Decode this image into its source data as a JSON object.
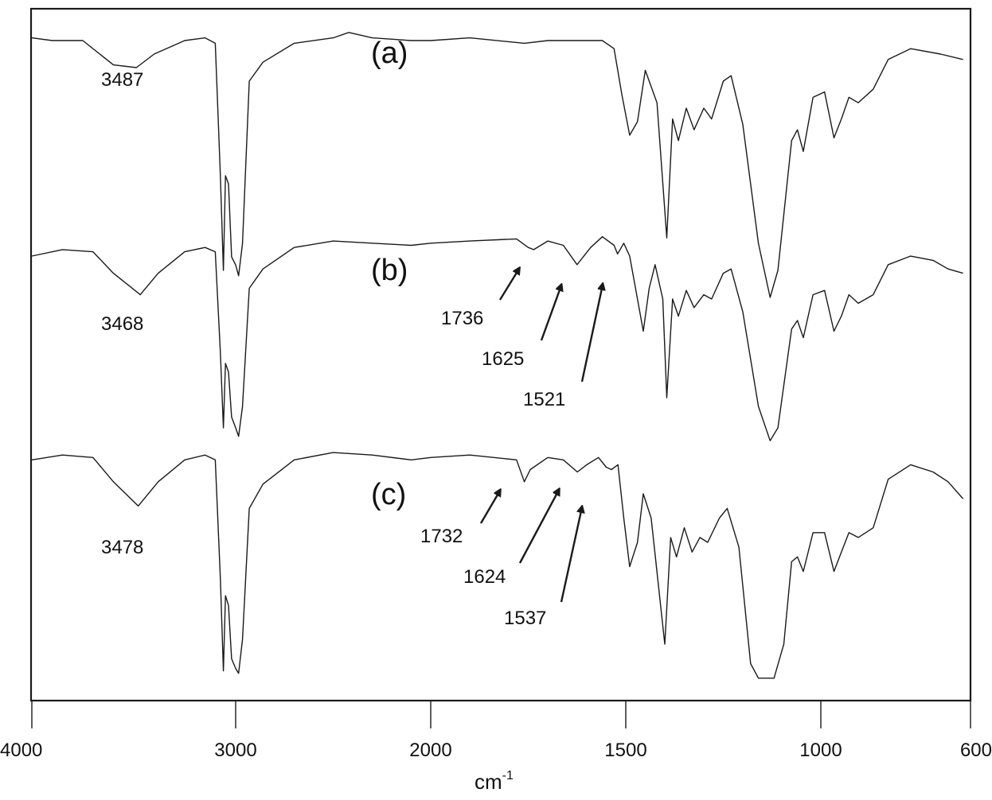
{
  "chart_data": {
    "type": "line",
    "title": "",
    "xlabel": "cm-1",
    "xlabel_base": "cm",
    "xlabel_sup": "-1",
    "ylabel": "",
    "x_axis": {
      "range": [
        4000,
        600
      ],
      "reversed": true,
      "scale": "split (4000-2000 compressed, 2000-600 expanded)",
      "ticks": [
        4000,
        3000,
        2000,
        1500,
        1000,
        600
      ],
      "tick_labels": [
        "4000",
        "3000",
        "2000",
        "1500",
        "1000",
        "600"
      ]
    },
    "y_axis": {
      "ticks": [],
      "offset_stacked": true
    },
    "grid": false,
    "legend": null,
    "series": [
      {
        "name": "(a)",
        "label": "(a)",
        "annotations": [
          {
            "text": "3487",
            "wavenumber": 3487
          }
        ],
        "points": [
          [
            4000,
            0.04
          ],
          [
            3900,
            0.05
          ],
          [
            3750,
            0.05
          ],
          [
            3600,
            0.14
          ],
          [
            3487,
            0.15
          ],
          [
            3400,
            0.1
          ],
          [
            3250,
            0.05
          ],
          [
            3150,
            0.04
          ],
          [
            3100,
            0.06
          ],
          [
            3075,
            0.55
          ],
          [
            3060,
            0.9
          ],
          [
            3050,
            0.55
          ],
          [
            3035,
            0.58
          ],
          [
            3020,
            0.85
          ],
          [
            3000,
            0.88
          ],
          [
            2985,
            0.92
          ],
          [
            2965,
            0.8
          ],
          [
            2930,
            0.2
          ],
          [
            2860,
            0.13
          ],
          [
            2700,
            0.06
          ],
          [
            2500,
            0.04
          ],
          [
            2420,
            0.02
          ],
          [
            2300,
            0.04
          ],
          [
            2100,
            0.05
          ],
          [
            2000,
            0.05
          ],
          [
            1900,
            0.04
          ],
          [
            1760,
            0.06
          ],
          [
            1700,
            0.05
          ],
          [
            1560,
            0.05
          ],
          [
            1530,
            0.08
          ],
          [
            1510,
            0.25
          ],
          [
            1490,
            0.4
          ],
          [
            1470,
            0.35
          ],
          [
            1450,
            0.16
          ],
          [
            1420,
            0.28
          ],
          [
            1395,
            0.78
          ],
          [
            1380,
            0.34
          ],
          [
            1365,
            0.42
          ],
          [
            1345,
            0.3
          ],
          [
            1325,
            0.38
          ],
          [
            1300,
            0.3
          ],
          [
            1280,
            0.34
          ],
          [
            1250,
            0.2
          ],
          [
            1230,
            0.18
          ],
          [
            1200,
            0.36
          ],
          [
            1160,
            0.8
          ],
          [
            1130,
            1.0
          ],
          [
            1110,
            0.9
          ],
          [
            1075,
            0.42
          ],
          [
            1060,
            0.38
          ],
          [
            1045,
            0.46
          ],
          [
            1020,
            0.26
          ],
          [
            990,
            0.24
          ],
          [
            965,
            0.41
          ],
          [
            945,
            0.34
          ],
          [
            925,
            0.26
          ],
          [
            900,
            0.28
          ],
          [
            860,
            0.23
          ],
          [
            820,
            0.12
          ],
          [
            760,
            0.08
          ],
          [
            680,
            0.1
          ],
          [
            620,
            0.12
          ]
        ]
      },
      {
        "name": "(b)",
        "label": "(b)",
        "annotations": [
          {
            "text": "3468",
            "wavenumber": 3468
          },
          {
            "text": "1736",
            "wavenumber": 1736,
            "arrow": true
          },
          {
            "text": "1625",
            "wavenumber": 1625,
            "arrow": true
          },
          {
            "text": "1521",
            "wavenumber": 1521,
            "arrow": true
          }
        ],
        "points": [
          [
            4000,
            0.1
          ],
          [
            3850,
            0.07
          ],
          [
            3700,
            0.08
          ],
          [
            3600,
            0.18
          ],
          [
            3468,
            0.28
          ],
          [
            3380,
            0.18
          ],
          [
            3250,
            0.08
          ],
          [
            3150,
            0.06
          ],
          [
            3100,
            0.08
          ],
          [
            3075,
            0.55
          ],
          [
            3060,
            0.9
          ],
          [
            3050,
            0.6
          ],
          [
            3035,
            0.64
          ],
          [
            3020,
            0.85
          ],
          [
            3000,
            0.9
          ],
          [
            2985,
            0.94
          ],
          [
            2965,
            0.8
          ],
          [
            2930,
            0.25
          ],
          [
            2860,
            0.16
          ],
          [
            2700,
            0.06
          ],
          [
            2500,
            0.03
          ],
          [
            2300,
            0.04
          ],
          [
            2100,
            0.05
          ],
          [
            2000,
            0.04
          ],
          [
            1900,
            0.03
          ],
          [
            1780,
            0.02
          ],
          [
            1750,
            0.06
          ],
          [
            1736,
            0.07
          ],
          [
            1700,
            0.03
          ],
          [
            1660,
            0.05
          ],
          [
            1625,
            0.14
          ],
          [
            1590,
            0.06
          ],
          [
            1560,
            0.01
          ],
          [
            1530,
            0.05
          ],
          [
            1521,
            0.09
          ],
          [
            1505,
            0.04
          ],
          [
            1490,
            0.1
          ],
          [
            1470,
            0.3
          ],
          [
            1455,
            0.45
          ],
          [
            1440,
            0.25
          ],
          [
            1425,
            0.14
          ],
          [
            1405,
            0.3
          ],
          [
            1395,
            0.76
          ],
          [
            1380,
            0.3
          ],
          [
            1365,
            0.38
          ],
          [
            1345,
            0.26
          ],
          [
            1325,
            0.34
          ],
          [
            1300,
            0.28
          ],
          [
            1280,
            0.3
          ],
          [
            1250,
            0.18
          ],
          [
            1230,
            0.16
          ],
          [
            1200,
            0.36
          ],
          [
            1160,
            0.8
          ],
          [
            1130,
            0.96
          ],
          [
            1110,
            0.9
          ],
          [
            1075,
            0.44
          ],
          [
            1060,
            0.4
          ],
          [
            1045,
            0.48
          ],
          [
            1020,
            0.28
          ],
          [
            990,
            0.26
          ],
          [
            965,
            0.45
          ],
          [
            945,
            0.38
          ],
          [
            925,
            0.28
          ],
          [
            900,
            0.32
          ],
          [
            860,
            0.28
          ],
          [
            820,
            0.14
          ],
          [
            760,
            0.1
          ],
          [
            700,
            0.12
          ],
          [
            660,
            0.16
          ],
          [
            620,
            0.18
          ]
        ]
      },
      {
        "name": "(c)",
        "label": "(c)",
        "annotations": [
          {
            "text": "3478",
            "wavenumber": 3478
          },
          {
            "text": "1732",
            "wavenumber": 1732,
            "arrow": true
          },
          {
            "text": "1624",
            "wavenumber": 1624,
            "arrow": true
          },
          {
            "text": "1537",
            "wavenumber": 1537,
            "arrow": true
          }
        ],
        "points": [
          [
            4000,
            0.06
          ],
          [
            3850,
            0.04
          ],
          [
            3700,
            0.05
          ],
          [
            3600,
            0.15
          ],
          [
            3478,
            0.25
          ],
          [
            3380,
            0.15
          ],
          [
            3250,
            0.06
          ],
          [
            3150,
            0.04
          ],
          [
            3100,
            0.06
          ],
          [
            3075,
            0.55
          ],
          [
            3060,
            0.93
          ],
          [
            3050,
            0.62
          ],
          [
            3035,
            0.66
          ],
          [
            3020,
            0.88
          ],
          [
            3000,
            0.92
          ],
          [
            2985,
            0.94
          ],
          [
            2965,
            0.8
          ],
          [
            2930,
            0.26
          ],
          [
            2860,
            0.16
          ],
          [
            2700,
            0.06
          ],
          [
            2500,
            0.03
          ],
          [
            2300,
            0.04
          ],
          [
            2100,
            0.06
          ],
          [
            2000,
            0.05
          ],
          [
            1900,
            0.04
          ],
          [
            1780,
            0.06
          ],
          [
            1760,
            0.15
          ],
          [
            1745,
            0.1
          ],
          [
            1700,
            0.05
          ],
          [
            1660,
            0.06
          ],
          [
            1624,
            0.11
          ],
          [
            1600,
            0.08
          ],
          [
            1570,
            0.05
          ],
          [
            1550,
            0.09
          ],
          [
            1537,
            0.1
          ],
          [
            1520,
            0.08
          ],
          [
            1505,
            0.3
          ],
          [
            1490,
            0.5
          ],
          [
            1470,
            0.4
          ],
          [
            1455,
            0.2
          ],
          [
            1435,
            0.3
          ],
          [
            1400,
            0.82
          ],
          [
            1385,
            0.38
          ],
          [
            1370,
            0.46
          ],
          [
            1350,
            0.34
          ],
          [
            1330,
            0.44
          ],
          [
            1310,
            0.38
          ],
          [
            1290,
            0.4
          ],
          [
            1260,
            0.3
          ],
          [
            1240,
            0.26
          ],
          [
            1210,
            0.42
          ],
          [
            1180,
            0.9
          ],
          [
            1160,
            0.96
          ],
          [
            1120,
            0.96
          ],
          [
            1095,
            0.82
          ],
          [
            1075,
            0.48
          ],
          [
            1060,
            0.46
          ],
          [
            1045,
            0.52
          ],
          [
            1020,
            0.36
          ],
          [
            990,
            0.36
          ],
          [
            965,
            0.52
          ],
          [
            945,
            0.44
          ],
          [
            925,
            0.36
          ],
          [
            900,
            0.38
          ],
          [
            860,
            0.34
          ],
          [
            820,
            0.14
          ],
          [
            760,
            0.08
          ],
          [
            700,
            0.11
          ],
          [
            660,
            0.15
          ],
          [
            620,
            0.22
          ]
        ]
      }
    ],
    "annotations": [
      "3487",
      "3468",
      "3478",
      "1736",
      "1625",
      "1521",
      "1732",
      "1624",
      "1537",
      "(a)",
      "(b)",
      "(c)"
    ]
  }
}
